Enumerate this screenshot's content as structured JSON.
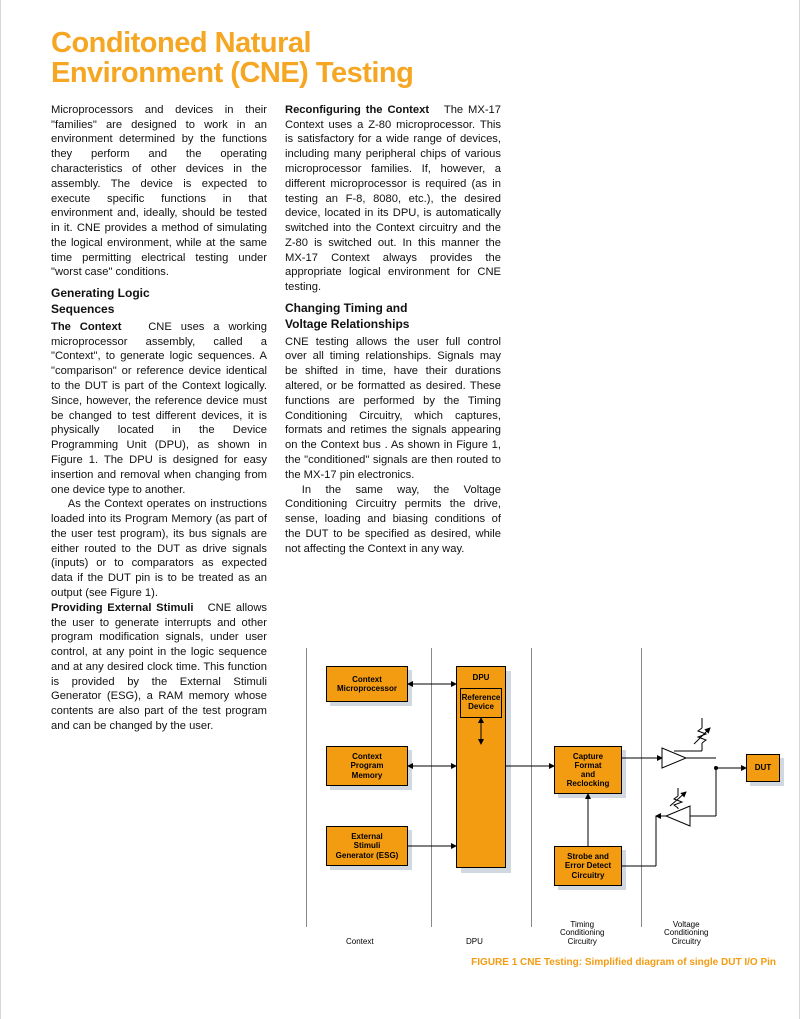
{
  "title_line1": "Conditoned Natural",
  "title_line2": "Environment (CNE) Testing",
  "col1": {
    "p1": "Microprocessors and devices in their \"families\" are designed to work in an environment determined by the functions they perform and the operating characteristics of other devices in the assembly. The device is expected to execute specific functions in that environment and, ideally, should be tested in it. CNE provides a method of simulating the logical environment, while at the same time permitting electrical testing under \"worst case\" conditions.",
    "h1a": "Generating Logic",
    "h1b": "Sequences",
    "p2a": "The Context",
    "p2b": "CNE uses a working microprocessor assembly, called a \"Context\", to generate logic sequences. A \"comparison\" or reference device identical to the DUT is part of the Context logically. Since, however, the reference device must be changed to test different devices, it is physically located in the Device Programming Unit (DPU), as shown in Figure 1. The DPU is designed for easy insertion and removal when changing from one device type to another.",
    "p3": "As the Context operates on instructions loaded into its Program Memory (as part of the user test program), its bus signals are either routed to the DUT as drive signals (inputs) or to comparators as expected data if the DUT pin is to be treated as an output (see Figure 1).",
    "p4a": "Providing External Stimuli",
    "p4b": "CNE allows the user to generate interrupts and other program modification signals, under user control, at any point in the logic sequence and at any desired clock time. This function is provided by the External Stimuli Generator (ESG), a RAM memory whose contents are also part of the test program and can be changed by the user."
  },
  "col2": {
    "p1a": "Reconfiguring the Context",
    "p1b": "The MX-17 Context uses a Z-80 microprocessor. This is satisfactory for a wide range of devices, including many peripheral chips of various microprocessor families. If, however, a different microprocessor is required (as in testing an F-8, 8080, etc.), the desired device, located in its DPU, is automatically switched into the Context circuitry and the Z-80 is switched out. In this manner the MX-17 Context always provides the appropriate logical environment for CNE testing.",
    "h1a": "Changing Timing and",
    "h1b": "Voltage Relationships",
    "p2": "CNE testing allows the user full control over all timing relationships. Signals may be shifted in time, have their durations altered, or be formatted as desired. These functions are performed by the Timing Conditioning Circuitry, which captures, formats and retimes the signals appearing on the Context bus . As shown in Figure 1, the \"conditioned\" signals are then routed to the MX-17 pin electronics.",
    "p3": "In the same way, the Voltage Conditioning Circuitry permits the drive, sense, loading and biasing conditions of the DUT to be specified as desired, while not affecting the Context in any way."
  },
  "figure": {
    "blocks": {
      "context_micro": "Context\nMicroprocessor",
      "context_mem": "Context\nProgram\nMemory",
      "esg": "External\nStimuli\nGenerator (ESG)",
      "dpu": "DPU",
      "ref_device": "Reference\nDevice",
      "capture": "Capture\nFormat\nand\nReclocking",
      "strobe": "Strobe and\nError Detect\nCircuitry",
      "dut": "DUT"
    },
    "sections": {
      "context": "Context",
      "dpu": "DPU",
      "timing": "Timing\nConditioning\nCircuitry",
      "voltage": "Voltage\nConditioning\nCircuitry"
    },
    "caption": "FIGURE 1    CNE Testing: Simplified diagram of single DUT I/O Pin",
    "colors": {
      "block_fill": "#f39c12",
      "shadow": "#d1d8e0",
      "line": "#888888",
      "caption": "#f39c12"
    }
  }
}
